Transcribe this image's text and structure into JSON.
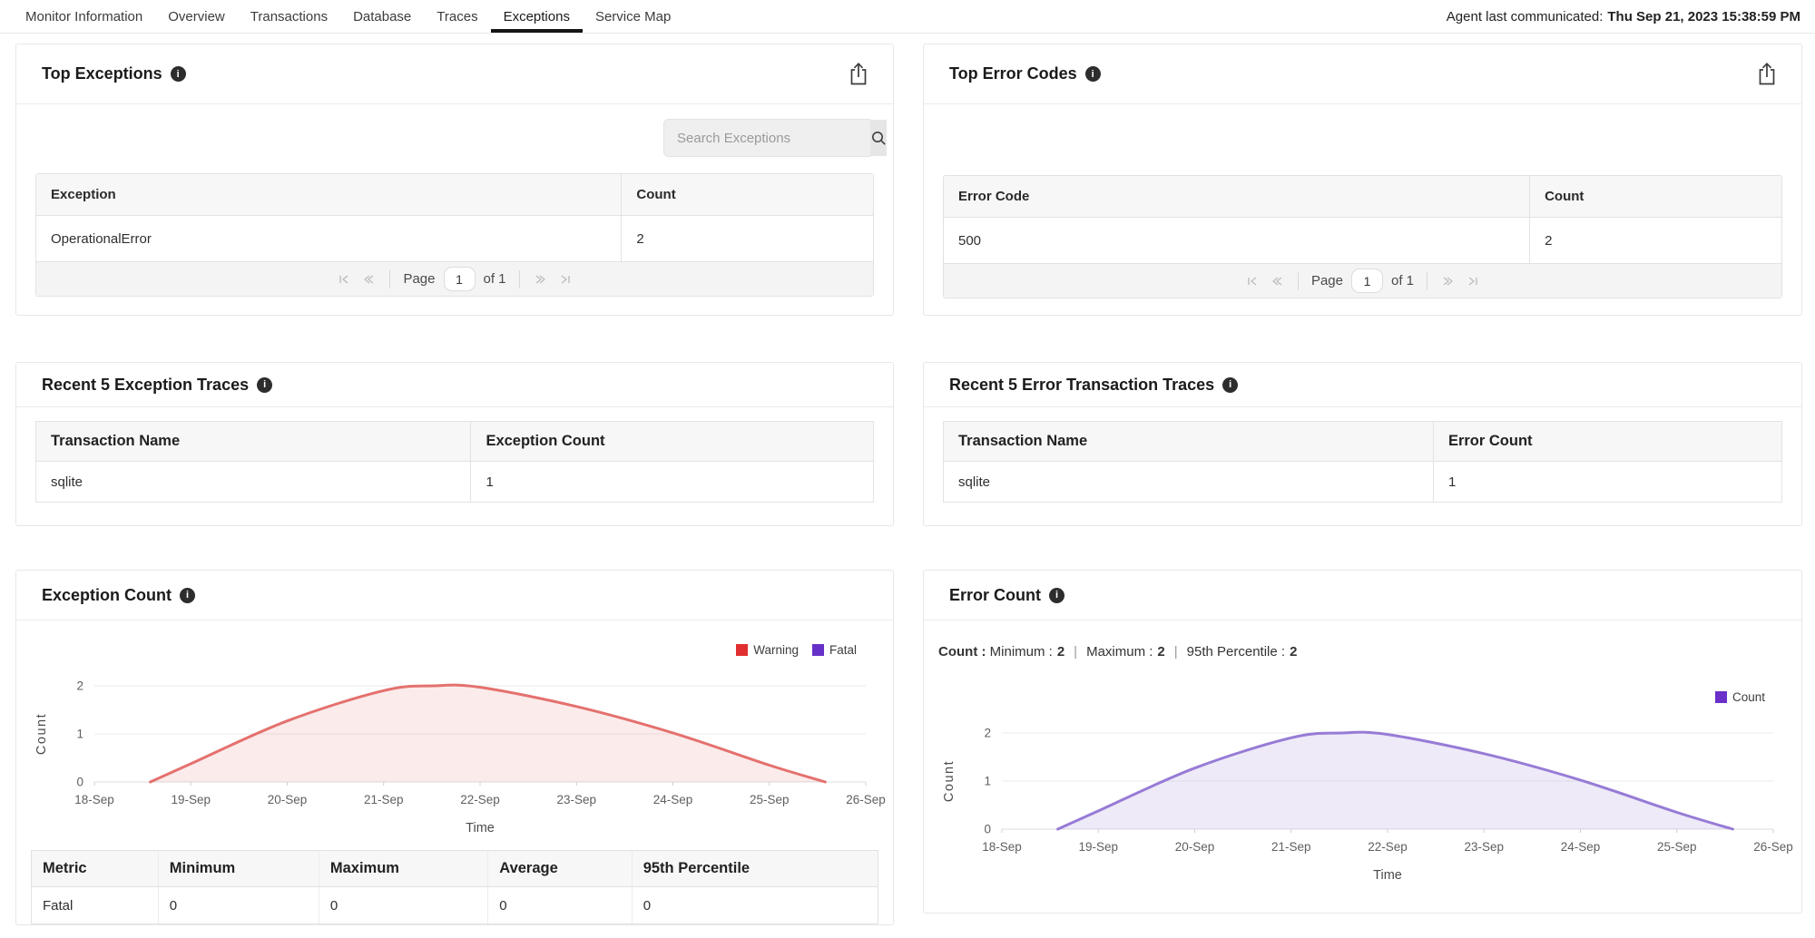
{
  "navbar": {
    "tabs": [
      {
        "label": "Monitor Information",
        "active": false
      },
      {
        "label": "Overview",
        "active": false
      },
      {
        "label": "Transactions",
        "active": false
      },
      {
        "label": "Database",
        "active": false
      },
      {
        "label": "Traces",
        "active": false
      },
      {
        "label": "Exceptions",
        "active": true
      },
      {
        "label": "Service Map",
        "active": false
      }
    ],
    "agent_status_label": "Agent last communicated:",
    "agent_status_value": "Thu Sep 21, 2023 15:38:59 PM"
  },
  "cards": {
    "top_exceptions": {
      "title": "Top Exceptions",
      "search_placeholder": "Search Exceptions",
      "table": {
        "headers": [
          "Exception",
          "Count"
        ],
        "rows": [
          [
            "OperationalError",
            "2"
          ]
        ]
      },
      "pagination": {
        "page_label": "Page",
        "page_value": "1",
        "of_label": "of 1"
      }
    },
    "top_error_codes": {
      "title": "Top Error Codes",
      "table": {
        "headers": [
          "Error Code",
          "Count"
        ],
        "rows": [
          [
            "500",
            "2"
          ]
        ]
      },
      "pagination": {
        "page_label": "Page",
        "page_value": "1",
        "of_label": "of 1"
      }
    },
    "recent_exception_traces": {
      "title": "Recent 5 Exception Traces",
      "table": {
        "headers": [
          "Transaction Name",
          "Exception Count"
        ],
        "rows": [
          [
            "sqlite",
            "1"
          ]
        ]
      }
    },
    "recent_error_traces": {
      "title": "Recent 5 Error Transaction Traces",
      "table": {
        "headers": [
          "Transaction Name",
          "Error Count"
        ],
        "rows": [
          [
            "sqlite",
            "1"
          ]
        ]
      }
    },
    "exception_count": {
      "title": "Exception Count",
      "metrics_table": {
        "headers": [
          "Metric",
          "Minimum",
          "Maximum",
          "Average",
          "95th Percentile"
        ],
        "rows": [
          [
            "Fatal",
            "0",
            "0",
            "0",
            "0"
          ]
        ]
      }
    },
    "error_count": {
      "title": "Error Count",
      "stats": {
        "prefix": "Count :",
        "items": [
          {
            "label": "Minimum :",
            "value": "2"
          },
          {
            "label": "Maximum :",
            "value": "2"
          },
          {
            "label": "95th Percentile :",
            "value": "2"
          }
        ]
      }
    }
  },
  "chart_data": [
    {
      "id": "exception-count-chart",
      "type": "area",
      "title": "Exception Count",
      "xlabel": "Time",
      "ylabel": "Count",
      "ylim": [
        0,
        2
      ],
      "yticks": [
        0,
        1,
        2
      ],
      "grid": true,
      "legend_position": "top-right",
      "categories": [
        "18-Sep",
        "19-Sep",
        "20-Sep",
        "21-Sep",
        "22-Sep",
        "23-Sep",
        "24-Sep",
        "25-Sep",
        "26-Sep"
      ],
      "series": [
        {
          "name": "Warning",
          "color": "#e12f2f",
          "line_color": "#e4716e",
          "fill_color": "rgba(228,113,110,0.14)",
          "daily_values": [
            0,
            0.38,
            1.27,
            1.9,
            1.97,
            1.57,
            1.02,
            0.35,
            0
          ],
          "curve_points": [
            [
              0.58,
              0
            ],
            [
              1,
              0.38
            ],
            [
              2,
              1.27
            ],
            [
              3,
              1.9
            ],
            [
              3.52,
              2.0
            ],
            [
              4,
              1.97
            ],
            [
              5,
              1.57
            ],
            [
              6,
              1.02
            ],
            [
              7,
              0.35
            ],
            [
              7.58,
              0
            ]
          ]
        },
        {
          "name": "Fatal",
          "color": "#6531c8",
          "line_color": "#977bd6",
          "fill_color": "rgba(151,123,214,0.16)",
          "daily_values": [
            0,
            0,
            0,
            0,
            0,
            0,
            0,
            0,
            0
          ],
          "curve_points": []
        }
      ]
    },
    {
      "id": "error-count-chart",
      "type": "area",
      "title": "Error Count",
      "xlabel": "Time",
      "ylabel": "Count",
      "ylim": [
        0,
        2
      ],
      "yticks": [
        0,
        1,
        2
      ],
      "grid": true,
      "legend_position": "top-right",
      "categories": [
        "18-Sep",
        "19-Sep",
        "20-Sep",
        "21-Sep",
        "22-Sep",
        "23-Sep",
        "24-Sep",
        "25-Sep",
        "26-Sep"
      ],
      "series": [
        {
          "name": "Count",
          "color": "#6a30c9",
          "line_color": "#977bd6",
          "fill_color": "rgba(151,123,214,0.16)",
          "daily_values": [
            0,
            0.38,
            1.27,
            1.9,
            1.97,
            1.57,
            1.02,
            0.35,
            0
          ],
          "curve_points": [
            [
              0.58,
              0
            ],
            [
              1,
              0.38
            ],
            [
              2,
              1.27
            ],
            [
              3,
              1.9
            ],
            [
              3.52,
              2.0
            ],
            [
              4,
              1.97
            ],
            [
              5,
              1.57
            ],
            [
              6,
              1.02
            ],
            [
              7,
              0.35
            ],
            [
              7.58,
              0
            ]
          ]
        }
      ]
    }
  ],
  "theme": {
    "active_tab_underline": "#161616",
    "card_border": "#e7e7e7",
    "table_header_bg": "#f7f7f7",
    "pager_bg": "#f4f4f4",
    "info_icon_bg": "#2d2d2d",
    "warning_red": "#e12f2f",
    "fatal_purple": "#6531c8"
  }
}
